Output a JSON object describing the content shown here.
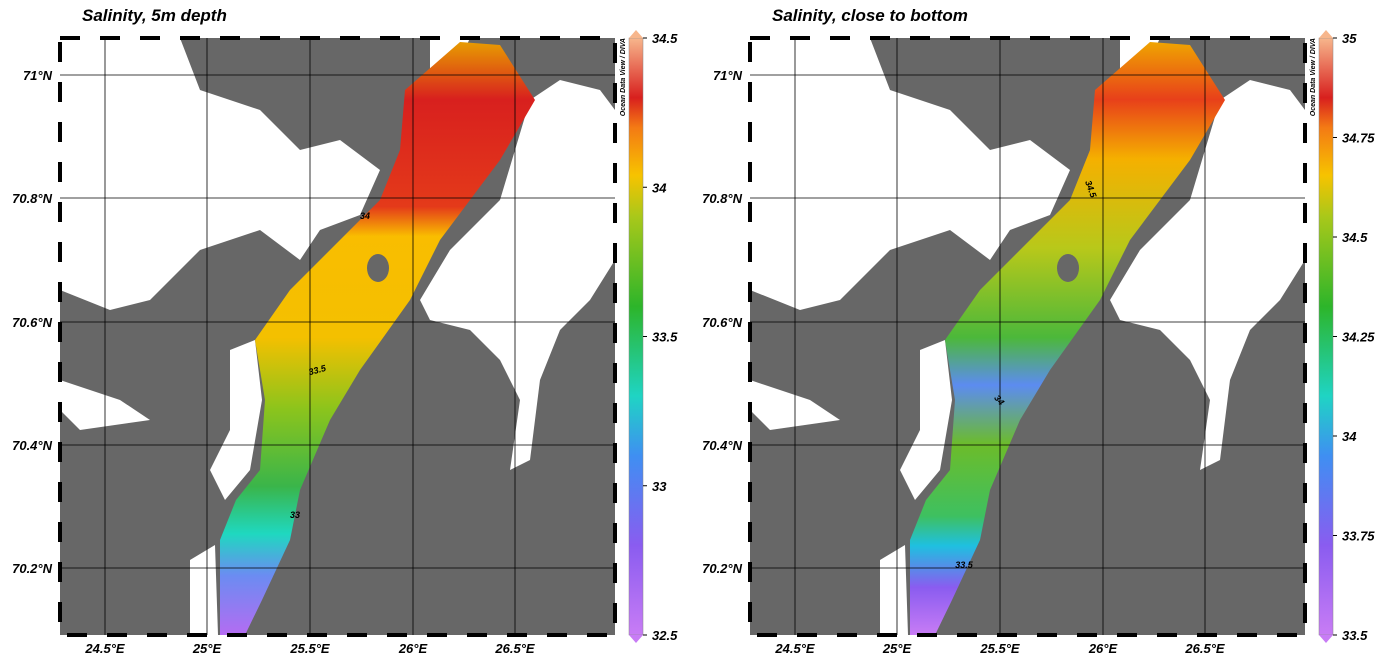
{
  "panels": [
    {
      "title": "Salinity, 5m depth",
      "lat_labels": [
        "71°N",
        "70.8°N",
        "70.6°N",
        "70.4°N",
        "70.2°N"
      ],
      "lon_labels": [
        "24.5°E",
        "25°E",
        "25.5°E",
        "26°E",
        "26.5°E"
      ],
      "colorbar_labels": [
        "34.5",
        "34",
        "33.5",
        "33",
        "32.5"
      ],
      "contour_labels": [
        "34",
        "33.5",
        "33"
      ],
      "credit": "Ocean Data View / DIVA"
    },
    {
      "title": "Salinity, close to bottom",
      "lat_labels": [
        "71°N",
        "70.8°N",
        "70.6°N",
        "70.4°N",
        "70.2°N"
      ],
      "lon_labels": [
        "24.5°E",
        "25°E",
        "25.5°E",
        "26°E",
        "26.5°E"
      ],
      "colorbar_labels": [
        "35",
        "34.75",
        "34.5",
        "34.25",
        "34",
        "33.75",
        "33.5"
      ],
      "contour_labels": [
        "34.5",
        "34",
        "33.5"
      ],
      "credit": "Ocean Data View / DIVA"
    }
  ]
}
